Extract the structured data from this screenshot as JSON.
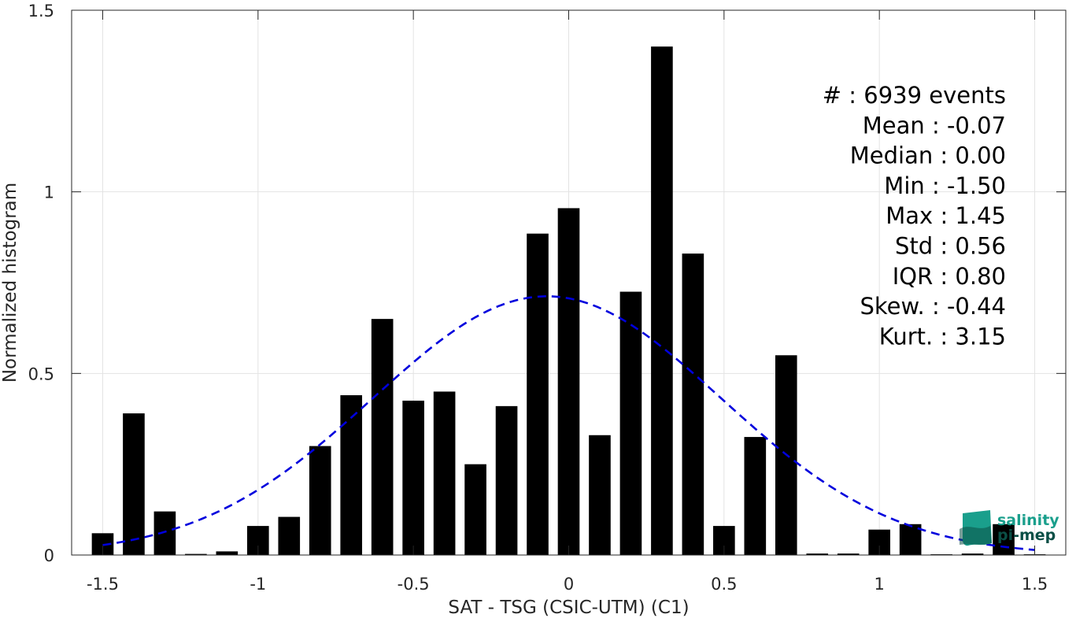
{
  "chart_data": {
    "type": "bar",
    "xlabel": "SAT - TSG (CSIC-UTM) (C1)",
    "ylabel": "Normalized histogram",
    "xlim": [
      -1.6,
      1.6
    ],
    "ylim": [
      0,
      1.5
    ],
    "xticks": [
      -1.5,
      -1,
      -0.5,
      0,
      0.5,
      1,
      1.5
    ],
    "xtick_labels": [
      "-1.5",
      "-1",
      "-0.5",
      "0",
      "0.5",
      "1",
      "1.5"
    ],
    "yticks": [
      0,
      0.5,
      1,
      1.5
    ],
    "ytick_labels": [
      "0",
      "0.5",
      "1",
      "1.5"
    ],
    "grid": true,
    "bar_width": 0.07,
    "bars": [
      {
        "x": -1.5,
        "y": 0.06
      },
      {
        "x": -1.4,
        "y": 0.39
      },
      {
        "x": -1.3,
        "y": 0.12
      },
      {
        "x": -1.2,
        "y": 0.003
      },
      {
        "x": -1.1,
        "y": 0.01
      },
      {
        "x": -1.0,
        "y": 0.08
      },
      {
        "x": -0.9,
        "y": 0.105
      },
      {
        "x": -0.8,
        "y": 0.3
      },
      {
        "x": -0.7,
        "y": 0.44
      },
      {
        "x": -0.6,
        "y": 0.65
      },
      {
        "x": -0.5,
        "y": 0.425
      },
      {
        "x": -0.4,
        "y": 0.45
      },
      {
        "x": -0.3,
        "y": 0.25
      },
      {
        "x": -0.2,
        "y": 0.41
      },
      {
        "x": -0.1,
        "y": 0.885
      },
      {
        "x": 0.0,
        "y": 0.955
      },
      {
        "x": 0.1,
        "y": 0.33
      },
      {
        "x": 0.2,
        "y": 0.725
      },
      {
        "x": 0.3,
        "y": 1.4
      },
      {
        "x": 0.4,
        "y": 0.83
      },
      {
        "x": 0.5,
        "y": 0.08
      },
      {
        "x": 0.6,
        "y": 0.325
      },
      {
        "x": 0.7,
        "y": 0.55
      },
      {
        "x": 0.8,
        "y": 0.004
      },
      {
        "x": 0.9,
        "y": 0.004
      },
      {
        "x": 1.0,
        "y": 0.07
      },
      {
        "x": 1.1,
        "y": 0.085
      },
      {
        "x": 1.2,
        "y": 0.002
      },
      {
        "x": 1.3,
        "y": 0.004
      },
      {
        "x": 1.4,
        "y": 0.085
      },
      {
        "x": 1.5,
        "y": 0.002
      }
    ],
    "fit_curve": {
      "type": "gaussian",
      "mean": -0.07,
      "std": 0.56,
      "x_range": [
        -1.5,
        1.5
      ],
      "color": "#0000dd",
      "style": "dashed"
    },
    "bar_color": "#000000"
  },
  "stats": [
    {
      "label": "#  : 6939 events"
    },
    {
      "label": "Mean : -0.07"
    },
    {
      "label": "Median : 0.00"
    },
    {
      "label": "Min : -1.50"
    },
    {
      "label": "Max : 1.45"
    },
    {
      "label": "Std : 0.56"
    },
    {
      "label": "IQR : 0.80"
    },
    {
      "label": "Skew. : -0.44"
    },
    {
      "label": "Kurt. : 3.15"
    }
  ],
  "logo": {
    "line1": "salinity",
    "line2": "pi-mep",
    "color_primary": "#1a9f8c",
    "color_secondary": "#0b4f46"
  }
}
